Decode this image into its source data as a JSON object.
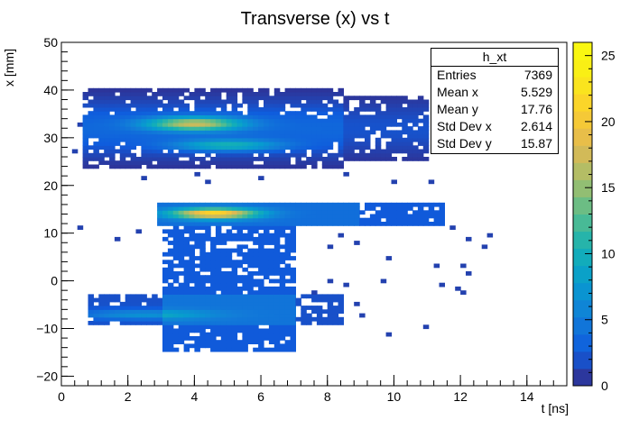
{
  "chart_data": {
    "type": "heatmap",
    "title": "Transverse (x) vs t",
    "xlabel": "t [ns]",
    "ylabel": "x [mm]",
    "xlim": [
      0,
      15.2
    ],
    "ylim": [
      -22,
      50
    ],
    "xticks": [
      0,
      2,
      4,
      6,
      8,
      10,
      12,
      14
    ],
    "yticks": [
      -20,
      -10,
      0,
      10,
      20,
      30,
      40,
      50
    ],
    "zlim": [
      0,
      26
    ],
    "zticks": [
      0,
      5,
      10,
      15,
      20,
      25
    ],
    "stats": {
      "name": "h_xt",
      "entries": [
        {
          "label": "Entries",
          "value": "7369"
        },
        {
          "label": "Mean x",
          "value": "5.529"
        },
        {
          "label": "Mean y",
          "value": "17.76"
        },
        {
          "label": "Std Dev x",
          "value": "2.614"
        },
        {
          "label": "Std Dev y",
          "value": "15.87"
        }
      ]
    },
    "regions": [
      {
        "name": "upper-band",
        "t": [
          0.6,
          11.0
        ],
        "x": [
          23,
          45
        ],
        "peak_level": 22
      },
      {
        "name": "middle-band",
        "t": [
          2.9,
          11.5
        ],
        "x": [
          12,
          16
        ],
        "peak_level": 24
      },
      {
        "name": "stem",
        "t": [
          3.0,
          7.0
        ],
        "x": [
          -15,
          14
        ],
        "peak_level": 3
      },
      {
        "name": "lower-band",
        "t": [
          0.8,
          8.5
        ],
        "x": [
          -9,
          -3
        ],
        "peak_level": 9
      }
    ]
  }
}
